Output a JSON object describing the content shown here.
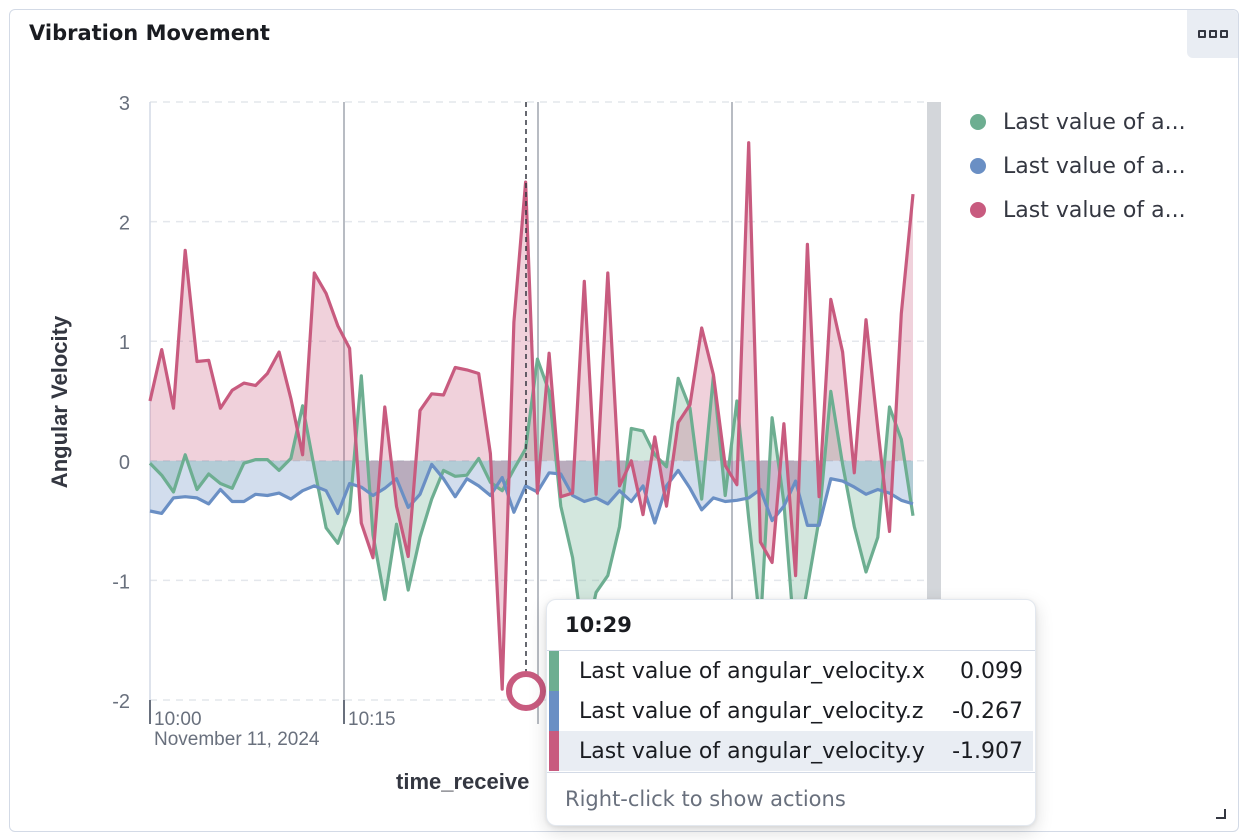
{
  "panel": {
    "title": "Vibration Movement",
    "menu_icon": "boxes-horizontal-icon",
    "resize_icon": "resize-corner-icon"
  },
  "legend": [
    {
      "label": "Last value of a...",
      "color": "#6dae91"
    },
    {
      "label": "Last value of a...",
      "color": "#6a8fc4"
    },
    {
      "label": "Last value of a...",
      "color": "#c85b7f"
    }
  ],
  "chart_data": {
    "type": "area",
    "xlabel": "time_receive",
    "ylabel": "Angular Velocity",
    "ylim": [
      -2,
      3
    ],
    "yticks": [
      "3",
      "2",
      "1",
      "0",
      "-1",
      "-2"
    ],
    "xticks": [
      {
        "label": "10:00",
        "sublabel": "November 11, 2024"
      },
      {
        "label": "10:15",
        "sublabel": ""
      }
    ],
    "grid": "horizontal-dashed",
    "legend_position": "right",
    "crosshair_time": "10:29",
    "series": [
      {
        "name": "Last value of angular_velocity.x",
        "color": "#6dae91",
        "values": [
          -0.02,
          -0.12,
          -0.26,
          0.05,
          -0.24,
          -0.11,
          -0.19,
          -0.23,
          -0.02,
          0.01,
          0.01,
          -0.08,
          0.02,
          0.46,
          -0.06,
          -0.56,
          -0.69,
          -0.42,
          0.71,
          -0.62,
          -1.16,
          -0.53,
          -1.08,
          -0.64,
          -0.32,
          -0.08,
          -0.13,
          -0.12,
          0.02,
          -0.18,
          -0.25,
          -0.07,
          0.1,
          0.85,
          0.58,
          -0.38,
          -0.81,
          -1.55,
          -1.1,
          -0.96,
          -0.55,
          0.27,
          0.25,
          0.05,
          -0.05,
          0.69,
          0.44,
          -0.32,
          0.71,
          -0.29,
          0.5,
          -0.48,
          -1.39,
          0.36,
          -0.35,
          -1.6,
          -1.06,
          -0.49,
          0.58,
          -0.03,
          -0.55,
          -0.93,
          -0.64,
          0.45,
          0.18,
          -0.46
        ]
      },
      {
        "name": "Last value of angular_velocity.z",
        "color": "#6a8fc4",
        "values": [
          -0.42,
          -0.44,
          -0.31,
          -0.3,
          -0.31,
          -0.36,
          -0.24,
          -0.34,
          -0.34,
          -0.28,
          -0.29,
          -0.27,
          -0.32,
          -0.25,
          -0.21,
          -0.25,
          -0.44,
          -0.19,
          -0.22,
          -0.29,
          -0.23,
          -0.15,
          -0.39,
          -0.28,
          -0.03,
          -0.15,
          -0.3,
          -0.15,
          -0.21,
          -0.29,
          -0.14,
          -0.43,
          -0.21,
          -0.26,
          -0.1,
          -0.11,
          -0.29,
          -0.34,
          -0.31,
          -0.36,
          -0.25,
          -0.34,
          -0.21,
          -0.52,
          -0.21,
          -0.08,
          -0.23,
          -0.41,
          -0.31,
          -0.34,
          -0.33,
          -0.31,
          -0.24,
          -0.5,
          -0.38,
          -0.17,
          -0.54,
          -0.54,
          -0.15,
          -0.17,
          -0.22,
          -0.28,
          -0.24,
          -0.27,
          -0.33,
          -0.36
        ]
      },
      {
        "name": "Last value of angular_velocity.y",
        "color": "#c85b7f",
        "values": [
          0.5,
          0.93,
          0.44,
          1.76,
          0.83,
          0.84,
          0.44,
          0.59,
          0.65,
          0.63,
          0.73,
          0.91,
          0.52,
          0.05,
          1.57,
          1.4,
          1.13,
          0.94,
          -0.52,
          -0.81,
          0.45,
          -0.38,
          -0.8,
          0.42,
          0.56,
          0.55,
          0.78,
          0.76,
          0.73,
          0.06,
          -1.91,
          1.16,
          2.33,
          -0.27,
          0.9,
          -0.3,
          -0.27,
          1.5,
          -0.28,
          1.57,
          -0.21,
          0.0,
          -0.45,
          0.2,
          -0.38,
          0.32,
          0.47,
          1.11,
          0.72,
          -0.04,
          -0.2,
          2.66,
          -0.68,
          -0.85,
          0.31,
          -0.96,
          1.81,
          -0.3,
          1.35,
          0.91,
          -0.1,
          1.18,
          0.27,
          -0.59,
          1.23,
          2.23
        ]
      }
    ]
  },
  "tooltip": {
    "header": "10:29",
    "rows": [
      {
        "label": "Last value of angular_velocity.x",
        "value": "0.099",
        "color": "#6dae91"
      },
      {
        "label": "Last value of angular_velocity.z",
        "value": "-0.267",
        "color": "#6a8fc4"
      },
      {
        "label": "Last value of angular_velocity.y",
        "value": "-1.907",
        "color": "#c85b7f"
      }
    ],
    "footer": "Right-click to show actions"
  }
}
